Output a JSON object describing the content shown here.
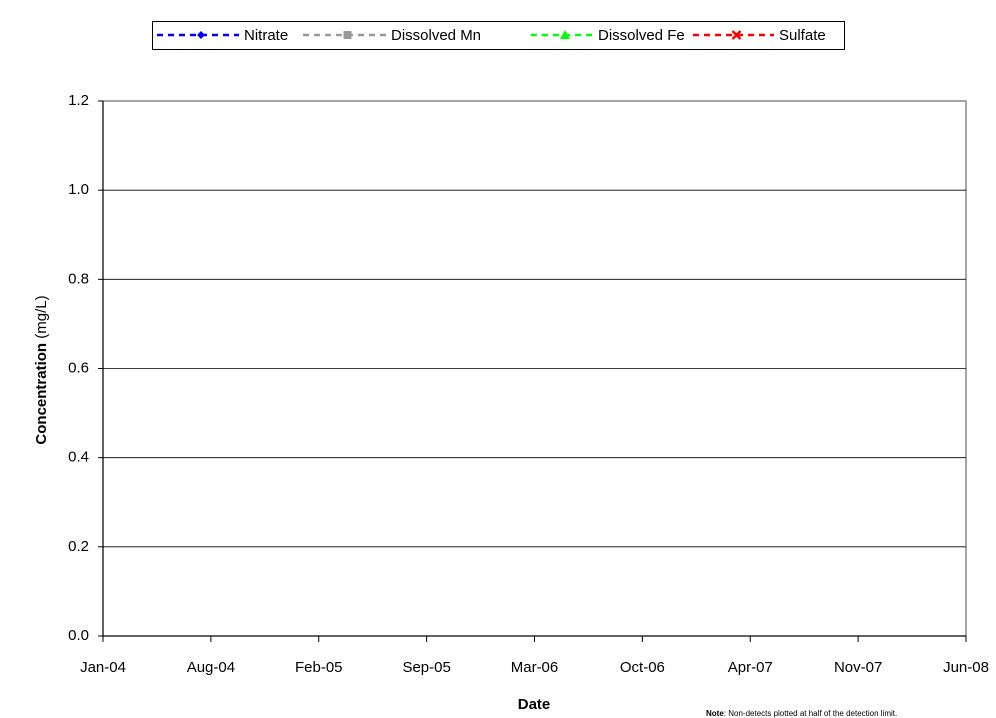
{
  "chart_data": {
    "type": "line",
    "xlabel": "Date",
    "ylabel": "Concentration",
    "yunit": "(mg/L)",
    "note_label": "Note",
    "note": ": Non-detects plotted at half of the detection limit.",
    "xticks": [
      "Jan-04",
      "Aug-04",
      "Feb-05",
      "Sep-05",
      "Mar-06",
      "Oct-06",
      "Apr-07",
      "Nov-07",
      "Jun-08"
    ],
    "ylim": [
      0,
      1.2
    ],
    "yticks": [
      {
        "value": 0,
        "label": "0.0"
      },
      0.2,
      0.4,
      0.6,
      0.8,
      {
        "value": 1,
        "label": "1.0"
      },
      1.2
    ],
    "grid": true,
    "legend": "top",
    "series": [
      {
        "name": "Nitrate",
        "color": "#0000ff",
        "marker": "diamond",
        "values": []
      },
      {
        "name": "Dissolved Mn",
        "color": "#999999",
        "marker": "square",
        "values": []
      },
      {
        "name": "Dissolved Fe",
        "color": "#00ff00",
        "marker": "triangle",
        "values": []
      },
      {
        "name": "Sulfate",
        "color": "#ff0000",
        "marker": "x",
        "values": []
      }
    ]
  }
}
